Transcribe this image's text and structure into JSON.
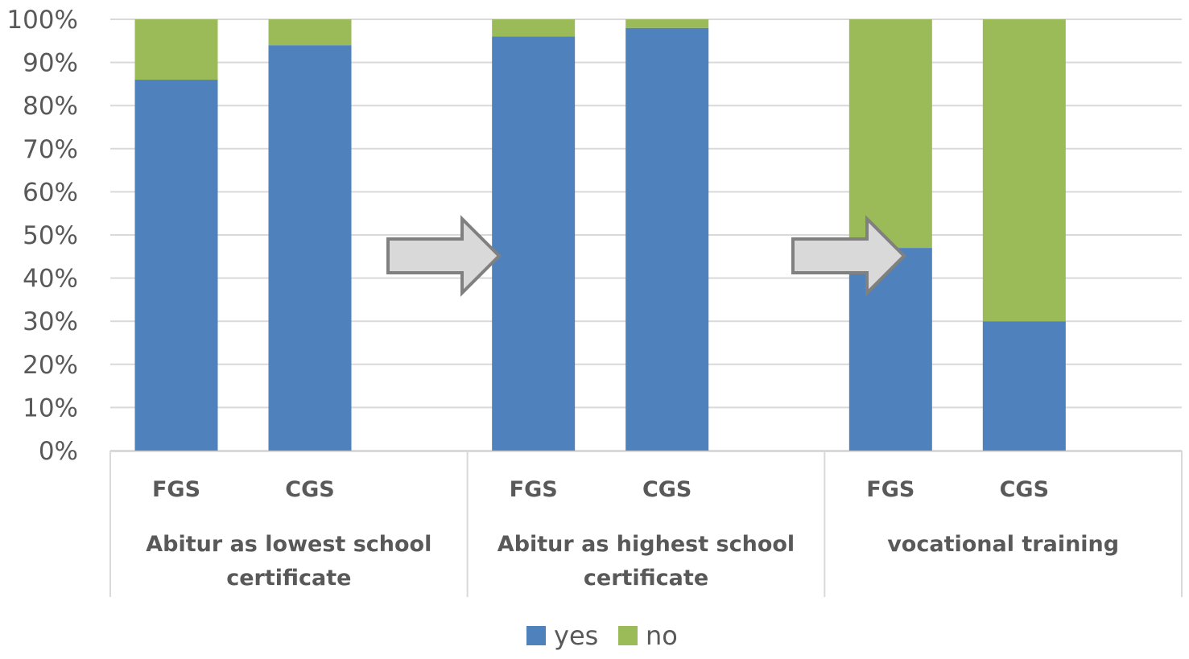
{
  "chart_data": {
    "type": "bar",
    "stacked": true,
    "percent": true,
    "ylim": [
      0,
      100
    ],
    "yticks": [
      "0%",
      "10%",
      "20%",
      "30%",
      "40%",
      "50%",
      "60%",
      "70%",
      "80%",
      "90%",
      "100%"
    ],
    "grid": true,
    "groups": [
      {
        "label_lines": [
          "Abitur as lowest school",
          "certificate"
        ],
        "categories": [
          "FGS",
          "CGS"
        ]
      },
      {
        "label_lines": [
          "Abitur as highest school",
          "certificate"
        ],
        "categories": [
          "FGS",
          "CGS"
        ]
      },
      {
        "label_lines": [
          "vocational training"
        ],
        "categories": [
          "FGS",
          "CGS"
        ]
      }
    ],
    "series": [
      {
        "name": "yes",
        "color": "#4F81BD",
        "values": [
          86,
          94,
          96,
          98,
          47,
          30
        ]
      },
      {
        "name": "no",
        "color": "#9BBB59",
        "values": [
          14,
          6,
          4,
          2,
          53,
          70
        ]
      }
    ],
    "annotations": [
      "arrow-right",
      "arrow-right"
    ],
    "legend": "bottom-center"
  }
}
